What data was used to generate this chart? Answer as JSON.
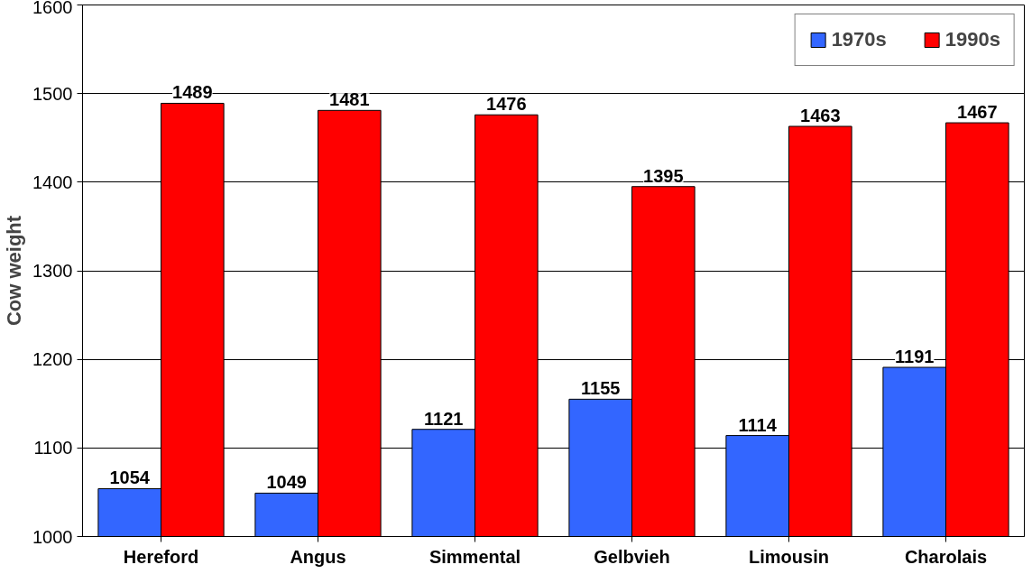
{
  "chart_data": {
    "type": "bar",
    "ylabel": "Cow weight",
    "categories": [
      "Hereford",
      "Angus",
      "Simmental",
      "Gelbvieh",
      "Limousin",
      "Charolais"
    ],
    "series": [
      {
        "name": "1970s",
        "color": "#3366ff",
        "values": [
          1054,
          1049,
          1121,
          1155,
          1114,
          1191
        ]
      },
      {
        "name": "1990s",
        "color": "#ff0000",
        "values": [
          1489,
          1481,
          1476,
          1395,
          1463,
          1467
        ]
      }
    ],
    "ylim": [
      1000,
      1600
    ],
    "yticks": [
      1000,
      1100,
      1200,
      1300,
      1400,
      1500,
      1600
    ],
    "grid": "y",
    "legend": "top right",
    "data_labels": true
  }
}
